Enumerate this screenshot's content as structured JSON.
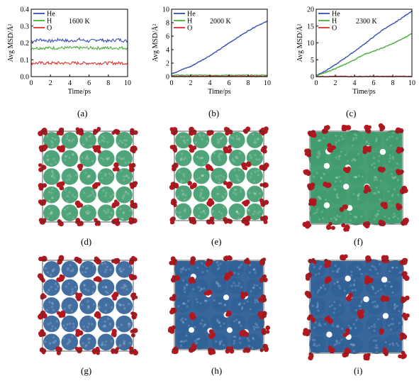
{
  "colors": {
    "He": "#3a4fb5",
    "H": "#4cae3c",
    "O": "#e0302a",
    "green_atoms": "#3d9a6c",
    "blue_atoms": "#2e5f96",
    "red_atoms": "#b01820"
  },
  "panel_labels": [
    "(a)",
    "(b)",
    "(c)",
    "(d)",
    "(e)",
    "(f)",
    "(g)",
    "(h)",
    "(i)"
  ],
  "chart_data": [
    {
      "type": "line",
      "title": "1600 K",
      "xlabel": "Time/ps",
      "ylabel": "Avg MSD/Å²",
      "xlim": [
        0,
        10
      ],
      "ylim": [
        0,
        0.4
      ],
      "xticks": [
        "0",
        "2",
        "4",
        "6",
        "8",
        "10"
      ],
      "yticks": [
        "0.0",
        "0.1",
        "0.2",
        "0.3",
        "0.4"
      ],
      "legend": "top-left",
      "series": [
        {
          "name": "He",
          "x": [
            0,
            1,
            2,
            3,
            4,
            5,
            6,
            7,
            8,
            9,
            10
          ],
          "values": [
            0.21,
            0.22,
            0.21,
            0.22,
            0.21,
            0.22,
            0.21,
            0.22,
            0.21,
            0.22,
            0.21
          ]
        },
        {
          "name": "H",
          "x": [
            0,
            1,
            2,
            3,
            4,
            5,
            6,
            7,
            8,
            9,
            10
          ],
          "values": [
            0.17,
            0.17,
            0.17,
            0.17,
            0.17,
            0.17,
            0.17,
            0.17,
            0.17,
            0.17,
            0.17
          ]
        },
        {
          "name": "O",
          "x": [
            0,
            1,
            2,
            3,
            4,
            5,
            6,
            7,
            8,
            9,
            10
          ],
          "values": [
            0.08,
            0.08,
            0.08,
            0.08,
            0.08,
            0.08,
            0.08,
            0.08,
            0.08,
            0.08,
            0.08
          ]
        }
      ]
    },
    {
      "type": "line",
      "title": "2000 K",
      "xlabel": "Time/ps",
      "ylabel": "Avg MSD/Å²",
      "xlim": [
        0,
        10
      ],
      "ylim": [
        0,
        10
      ],
      "xticks": [
        "0",
        "2",
        "4",
        "6",
        "8",
        "10"
      ],
      "yticks": [
        "0",
        "2",
        "4",
        "6",
        "8",
        "10"
      ],
      "legend": "top-left",
      "series": [
        {
          "name": "He",
          "x": [
            0,
            1,
            2,
            3,
            4,
            5,
            6,
            7,
            8,
            9,
            10
          ],
          "values": [
            0.4,
            1.0,
            1.5,
            2.3,
            3.1,
            4.0,
            5.0,
            5.9,
            6.8,
            7.6,
            8.2
          ]
        },
        {
          "name": "H",
          "x": [
            0,
            1,
            2,
            3,
            4,
            5,
            6,
            7,
            8,
            9,
            10
          ],
          "values": [
            0.2,
            0.2,
            0.2,
            0.2,
            0.2,
            0.2,
            0.2,
            0.2,
            0.2,
            0.2,
            0.2
          ]
        },
        {
          "name": "O",
          "x": [
            0,
            1,
            2,
            3,
            4,
            5,
            6,
            7,
            8,
            9,
            10
          ],
          "values": [
            0.05,
            0.05,
            0.05,
            0.05,
            0.05,
            0.05,
            0.05,
            0.05,
            0.05,
            0.05,
            0.05
          ]
        }
      ]
    },
    {
      "type": "line",
      "title": "2300 K",
      "xlabel": "Time/ps",
      "ylabel": "Avg MSD/Å²",
      "xlim": [
        0,
        10
      ],
      "ylim": [
        0,
        20
      ],
      "xticks": [
        "0",
        "2",
        "4",
        "6",
        "8",
        "10"
      ],
      "yticks": [
        "0",
        "5",
        "10",
        "15",
        "20"
      ],
      "legend": "top-left",
      "series": [
        {
          "name": "He",
          "x": [
            0,
            1,
            2,
            3,
            4,
            5,
            6,
            7,
            8,
            9,
            10
          ],
          "values": [
            0.3,
            1.8,
            3.5,
            5.5,
            7.5,
            9.6,
            11.8,
            14.0,
            15.6,
            17.5,
            19.5
          ]
        },
        {
          "name": "H",
          "x": [
            0,
            1,
            2,
            3,
            4,
            5,
            6,
            7,
            8,
            9,
            10
          ],
          "values": [
            0.3,
            1.2,
            2.4,
            3.6,
            5.0,
            6.6,
            7.5,
            8.6,
            9.8,
            11.2,
            12.8
          ]
        },
        {
          "name": "O",
          "x": [
            0,
            1,
            2,
            3,
            4,
            5,
            6,
            7,
            8,
            9,
            10
          ],
          "values": [
            0.05,
            0.05,
            0.05,
            0.05,
            0.05,
            0.05,
            0.05,
            0.05,
            0.05,
            0.05,
            0.05
          ]
        }
      ]
    }
  ],
  "snapshots": [
    {
      "host": "green",
      "disorder": 0.05
    },
    {
      "host": "green",
      "disorder": 0.1
    },
    {
      "host": "green",
      "disorder": 1.0
    },
    {
      "host": "blue",
      "disorder": 0.05
    },
    {
      "host": "blue",
      "disorder": 0.7
    },
    {
      "host": "blue",
      "disorder": 1.0
    }
  ]
}
